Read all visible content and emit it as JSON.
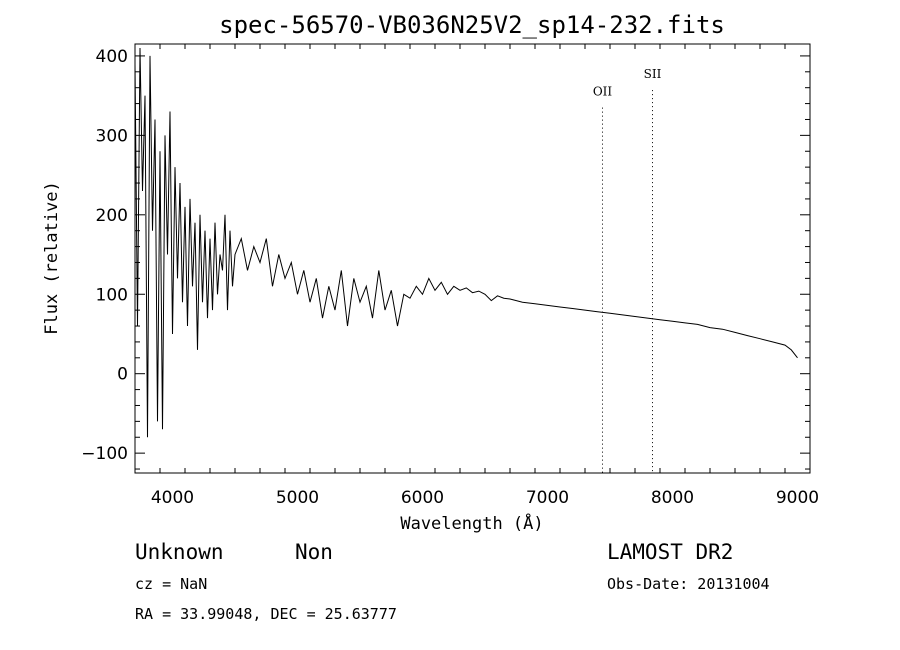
{
  "chart_data": {
    "type": "line",
    "title": "spec-56570-VB036N25V2_sp14-232.fits",
    "xlabel": "Wavelength (Å)",
    "ylabel": "Flux (relative)",
    "xlim": [
      3700,
      9100
    ],
    "ylim": [
      -125,
      415
    ],
    "x_ticks": [
      4000,
      5000,
      6000,
      7000,
      8000,
      9000
    ],
    "y_ticks": [
      -100,
      0,
      100,
      200,
      300,
      400
    ],
    "x_tick_labels": [
      "4000",
      "5000",
      "6000",
      "7000",
      "8000",
      "9000"
    ],
    "y_tick_labels": [
      "−100",
      "0",
      "100",
      "200",
      "300",
      "400"
    ],
    "grid": false,
    "series": [
      {
        "x": [
          3700,
          3720,
          3740,
          3760,
          3780,
          3800,
          3820,
          3840,
          3860,
          3880,
          3900,
          3920,
          3940,
          3960,
          3980,
          4000,
          4020,
          4040,
          4060,
          4080,
          4100,
          4120,
          4140,
          4160,
          4180,
          4200,
          4220,
          4240,
          4260,
          4280,
          4300,
          4320,
          4340,
          4360,
          4380,
          4400,
          4420,
          4440,
          4460,
          4480,
          4500,
          4550,
          4600,
          4650,
          4700,
          4750,
          4800,
          4850,
          4900,
          4950,
          5000,
          5050,
          5100,
          5150,
          5200,
          5250,
          5300,
          5350,
          5400,
          5450,
          5500,
          5550,
          5600,
          5650,
          5700,
          5750,
          5800,
          5850,
          5900,
          5950,
          6000,
          6050,
          6100,
          6150,
          6200,
          6250,
          6300,
          6350,
          6400,
          6450,
          6500,
          6550,
          6600,
          6650,
          6700,
          6750,
          6800,
          6900,
          7000,
          7100,
          7200,
          7300,
          7400,
          7500,
          7600,
          7700,
          7800,
          7900,
          8000,
          8100,
          8200,
          8300,
          8400,
          8500,
          8600,
          8700,
          8800,
          8900,
          8950,
          9000
        ],
        "y": [
          390,
          60,
          410,
          230,
          350,
          -80,
          400,
          180,
          320,
          -60,
          280,
          -70,
          300,
          150,
          330,
          50,
          260,
          120,
          240,
          90,
          210,
          60,
          220,
          110,
          190,
          30,
          200,
          90,
          180,
          70,
          170,
          80,
          190,
          100,
          150,
          130,
          200,
          80,
          180,
          110,
          150,
          170,
          130,
          160,
          140,
          170,
          110,
          150,
          120,
          140,
          100,
          130,
          90,
          120,
          70,
          110,
          80,
          130,
          60,
          120,
          90,
          110,
          70,
          130,
          80,
          105,
          60,
          100,
          95,
          110,
          100,
          120,
          105,
          115,
          100,
          110,
          105,
          108,
          102,
          104,
          100,
          92,
          98,
          95,
          94,
          92,
          90,
          88,
          86,
          84,
          82,
          80,
          78,
          76,
          74,
          72,
          70,
          68,
          66,
          64,
          62,
          58,
          56,
          52,
          48,
          44,
          40,
          36,
          30,
          20
        ]
      }
    ],
    "annotations": [
      {
        "label": "OII",
        "x": 7440,
        "y": 350
      },
      {
        "label": "SII",
        "x": 7840,
        "y": 372
      }
    ]
  },
  "info": {
    "left_line1_a": "Unknown",
    "left_line1_b": "Non",
    "left_line2": "cz = NaN",
    "left_line3": "RA =  33.99048, DEC =  25.63777",
    "right_line1": "LAMOST DR2",
    "right_line2": "Obs-Date: 20131004"
  }
}
